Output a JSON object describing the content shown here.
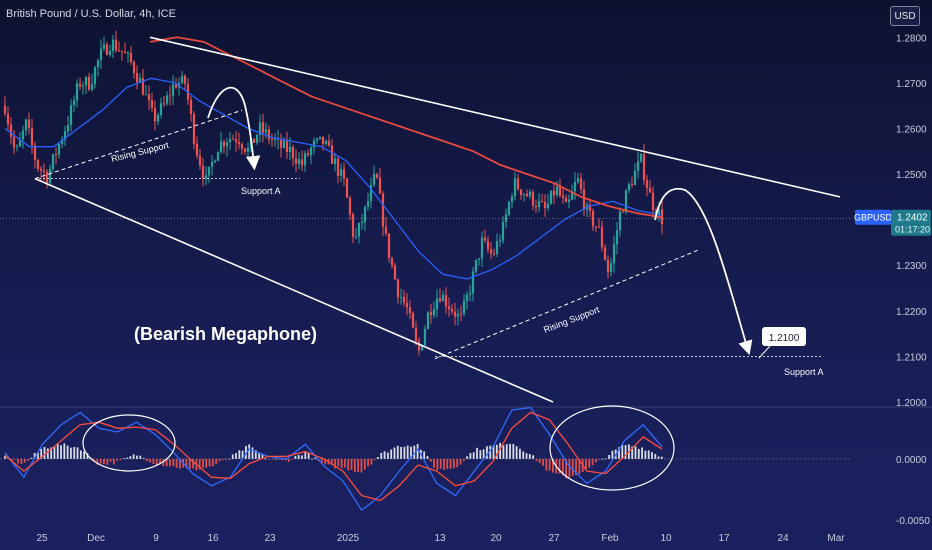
{
  "header": {
    "title": "British Pound / U.S. Dollar, 4h, ICE",
    "currency_button": "USD"
  },
  "price_tag": {
    "symbol": "GBPUSD",
    "price": "1.2402",
    "countdown": "01:17:20"
  },
  "annotations": {
    "pattern": "(Bearish Megaphone)",
    "rising_support_1": "Rising Support",
    "rising_support_2": "Rising Support",
    "support_a_1": "Support A",
    "support_a_2": "Support A",
    "target_label": "1.2100"
  },
  "colors": {
    "candle_up": "#26a69a",
    "candle_down": "#ef5350",
    "ma_fast": "#2962ff",
    "ma_slow": "#e84a3f",
    "macd_line": "#2f6bff",
    "signal_line": "#ff4d3d",
    "hist_up": "#d9dde8",
    "hist_down": "#e0504a",
    "annotation": "#ffffff"
  },
  "chart_data": {
    "type": "candlestick",
    "timeframe": "4h",
    "price_axis": {
      "ylim": [
        1.2,
        1.2816
      ],
      "ticks": [
        "1.2800",
        "1.2700",
        "1.2600",
        "1.2500",
        "1.2400",
        "1.2300",
        "1.2200",
        "1.2100",
        "1.2000"
      ]
    },
    "time_axis": {
      "ticks": [
        "25",
        "Dec",
        "9",
        "16",
        "23",
        "2025",
        "13",
        "20",
        "27",
        "Feb",
        "10",
        "17",
        "24",
        "Mar"
      ]
    },
    "price_path": [
      [
        1.265,
        1.254,
        1.261,
        1.252,
        1.2495,
        1.256,
        1.262,
        1.27,
        1.27,
        1.276,
        1.279,
        1.277,
        1.274,
        1.269,
        1.262,
        1.265,
        1.27,
        1.27,
        1.256,
        1.248,
        1.256,
        1.258,
        1.258,
        1.255,
        1.26,
        1.258,
        1.256,
        1.255,
        1.252,
        1.256,
        1.257,
        1.253,
        1.248,
        1.235,
        1.242,
        1.25,
        1.235,
        1.225,
        1.22,
        1.2105,
        1.22,
        1.224,
        1.221,
        1.218,
        1.226,
        1.235,
        1.232,
        1.238,
        1.248,
        1.246,
        1.244,
        1.242,
        1.247,
        1.242,
        1.249,
        1.241,
        1.238,
        1.228,
        1.241,
        1.248,
        1.253,
        1.244,
        1.2402
      ]
    ],
    "moving_averages": [
      {
        "name": "fast",
        "values": [
          1.26,
          1.256,
          1.256,
          1.26,
          1.264,
          1.269,
          1.271,
          1.27,
          1.266,
          1.263,
          1.26,
          1.258,
          1.257,
          1.256,
          1.253,
          1.247,
          1.24,
          1.233,
          1.228,
          1.227,
          1.229,
          1.232,
          1.236,
          1.24,
          1.243,
          1.244,
          1.242,
          1.241
        ]
      },
      {
        "name": "slow",
        "values": [
          1.279,
          1.28,
          1.279,
          1.276,
          1.273,
          1.27,
          1.267,
          1.265,
          1.263,
          1.261,
          1.259,
          1.257,
          1.255,
          1.252,
          1.25,
          1.248,
          1.245,
          1.243,
          1.2415,
          1.2405
        ]
      }
    ],
    "trendlines": [
      {
        "name": "megaphone-top",
        "from": [
          1.28
        ],
        "to": [
          1.245
        ]
      },
      {
        "name": "megaphone-bottom",
        "from": [
          1.249
        ],
        "to": [
          1.2
        ]
      },
      {
        "name": "rising-support-1",
        "from": [
          1.249
        ],
        "to": [
          1.264
        ]
      },
      {
        "name": "rising-support-2",
        "from": [
          1.2095
        ],
        "to": [
          1.2335
        ]
      },
      {
        "name": "support-a-1",
        "value": 1.249
      },
      {
        "name": "support-a-2",
        "value": 1.21
      }
    ],
    "macd": {
      "ylim": [
        -0.005,
        0.004
      ],
      "ticks": [
        "0.0000",
        "-0.0050"
      ],
      "series": [
        {
          "name": "macd",
          "values": [
            0.0005,
            -0.0015,
            0.0012,
            0.0028,
            0.0038,
            0.0025,
            0.0022,
            0.003,
            0.002,
            0.0005,
            -0.0012,
            -0.0022,
            -0.0015,
            0.0008,
            0.0002,
            0.0,
            0.0012,
            -0.0006,
            -0.0018,
            -0.0042,
            -0.003,
            -0.001,
            0.0008,
            -0.002,
            -0.003,
            -0.001,
            0.001,
            0.004,
            0.0042,
            0.002,
            -0.0005,
            -0.002,
            -0.001,
            0.0015,
            0.0028,
            0.001
          ]
        },
        {
          "name": "signal",
          "values": [
            0.0003,
            -0.001,
            0.0002,
            0.0015,
            0.0028,
            0.003,
            0.0025,
            0.0026,
            0.0024,
            0.0012,
            -0.0002,
            -0.0015,
            -0.0016,
            -0.0004,
            0.0002,
            0.0002,
            0.0006,
            0.0,
            -0.001,
            -0.003,
            -0.0034,
            -0.0022,
            -0.0005,
            -0.001,
            -0.0022,
            -0.0018,
            -0.0002,
            0.0025,
            0.0038,
            0.0032,
            0.0012,
            -0.001,
            -0.0012,
            0.0002,
            0.0018,
            0.0008
          ]
        }
      ]
    }
  }
}
